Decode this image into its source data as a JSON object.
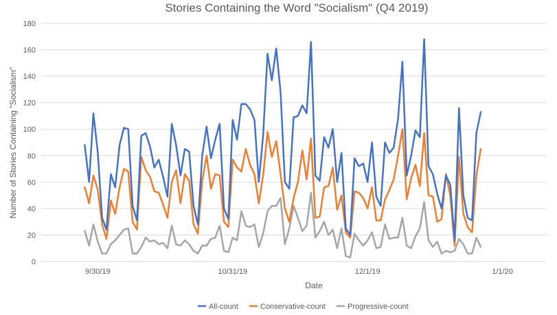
{
  "chart_data": {
    "type": "line",
    "title": "Stories Containing the Word \"Socialism\" (Q4 2019)",
    "xlabel": "Date",
    "ylabel": "Number of Stories Containing \"Socialism\"",
    "ylim": [
      0,
      180
    ],
    "yticks": [
      0,
      20,
      40,
      60,
      80,
      100,
      120,
      140,
      160,
      180
    ],
    "xlim": [
      "2019-09-17",
      "2020-01-11"
    ],
    "xticks": [
      {
        "date": "2019-09-30",
        "label": "9/30/19"
      },
      {
        "date": "2019-10-31",
        "label": "10/31/19"
      },
      {
        "date": "2019-12-01",
        "label": "12/1/19"
      },
      {
        "date": "2020-01-01",
        "label": "1/1/20"
      }
    ],
    "grid": "horizontal",
    "legend": "bottom",
    "start_date": "2019-09-27",
    "series": [
      {
        "name": "All-count",
        "color": "#4472C4",
        "values": [
          88,
          60,
          112,
          82,
          33,
          24,
          66,
          56,
          88,
          101,
          100,
          42,
          31,
          95,
          97,
          87,
          71,
          77,
          64,
          49,
          104,
          88,
          65,
          85,
          83,
          42,
          28,
          80,
          102,
          78,
          92,
          104,
          40,
          32,
          107,
          92,
          119,
          119,
          115,
          107,
          60,
          95,
          157,
          137,
          161,
          128,
          60,
          55,
          109,
          110,
          118,
          112,
          166,
          65,
          61,
          94,
          86,
          100,
          60,
          82,
          25,
          20,
          78,
          72,
          74,
          60,
          90,
          49,
          42,
          90,
          82,
          86,
          108,
          151,
          65,
          80,
          99,
          94,
          168,
          72,
          66,
          51,
          40,
          65,
          58,
          16,
          116,
          50,
          33,
          31,
          97,
          113
        ]
      },
      {
        "name": "Conservative-count",
        "color": "#ED7D31",
        "values": [
          56,
          44,
          65,
          54,
          28,
          17,
          46,
          36,
          56,
          70,
          68,
          30,
          24,
          79,
          69,
          64,
          53,
          52,
          43,
          33,
          60,
          69,
          44,
          66,
          61,
          28,
          21,
          61,
          80,
          55,
          66,
          65,
          30,
          26,
          77,
          71,
          68,
          85,
          73,
          66,
          44,
          65,
          98,
          79,
          91,
          66,
          40,
          30,
          48,
          60,
          84,
          62,
          93,
          33,
          34,
          56,
          57,
          71,
          39,
          50,
          22,
          18,
          53,
          52,
          48,
          40,
          56,
          31,
          31,
          47,
          54,
          62,
          80,
          100,
          47,
          63,
          73,
          57,
          97,
          50,
          49,
          30,
          32,
          66,
          50,
          12,
          79,
          36,
          26,
          22,
          65,
          85
        ]
      },
      {
        "name": "Progressive-count",
        "color": "#A5A5A5",
        "values": [
          23,
          12,
          28,
          15,
          6,
          6,
          13,
          16,
          20,
          24,
          25,
          6,
          6,
          11,
          18,
          15,
          16,
          13,
          14,
          10,
          27,
          13,
          12,
          16,
          13,
          8,
          6,
          12,
          12,
          17,
          18,
          27,
          8,
          7,
          18,
          16,
          38,
          27,
          26,
          28,
          11,
          21,
          38,
          42,
          42,
          48,
          13,
          25,
          42,
          33,
          23,
          27,
          52,
          18,
          23,
          30,
          20,
          24,
          10,
          25,
          4,
          3,
          21,
          16,
          12,
          16,
          22,
          10,
          11,
          28,
          17,
          18,
          18,
          33,
          12,
          10,
          19,
          25,
          45,
          16,
          11,
          15,
          6,
          8,
          7,
          8,
          17,
          13,
          6,
          6,
          18,
          11
        ]
      }
    ]
  }
}
